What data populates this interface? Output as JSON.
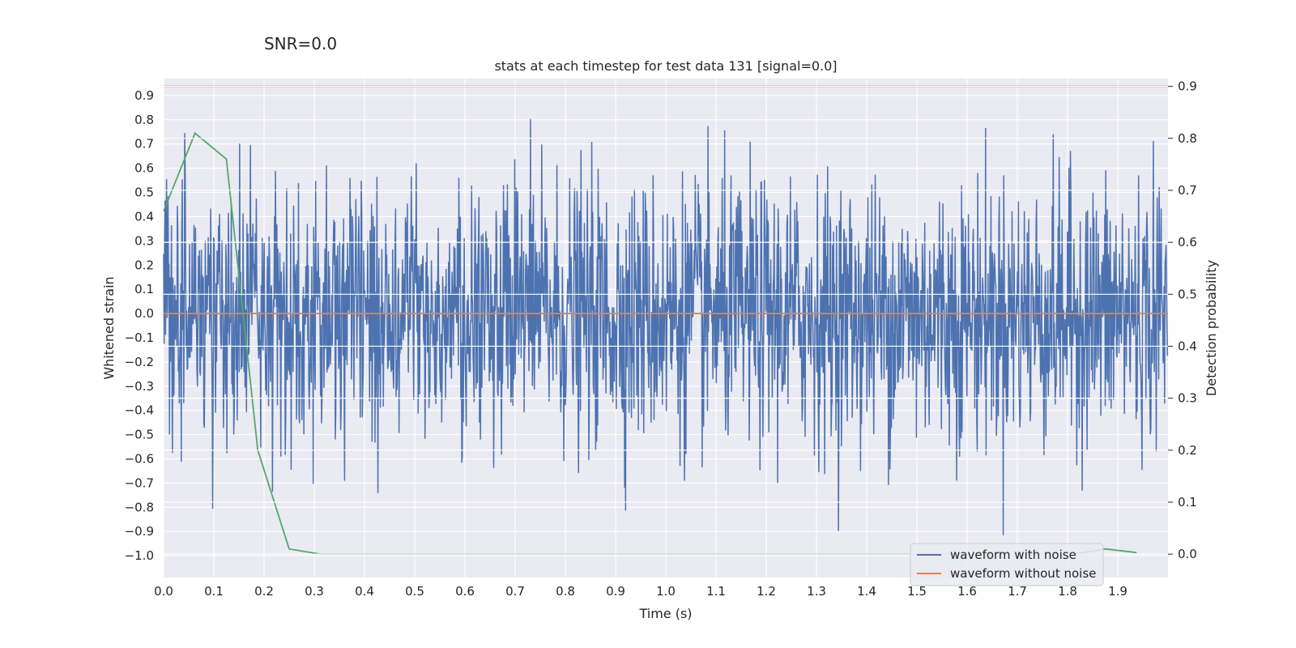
{
  "figure": {
    "suptitle": "SNR=0.0"
  },
  "chart_data": {
    "type": "line",
    "title": "stats at each timestep for test data 131 [signal=0.0]",
    "xlabel": "Time (s)",
    "ylabel": "Whitened strain",
    "y2label": "Detection probability",
    "xlim": [
      0.0,
      2.0
    ],
    "ylim": [
      -1.09,
      0.97
    ],
    "y2lim": [
      -0.045,
      0.915
    ],
    "grid": true,
    "legend_location": "lower-right",
    "x_ticks": [
      "0.0",
      "0.1",
      "0.2",
      "0.3",
      "0.4",
      "0.5",
      "0.6",
      "0.7",
      "0.8",
      "0.9",
      "1.0",
      "1.1",
      "1.2",
      "1.3",
      "1.4",
      "1.5",
      "1.6",
      "1.7",
      "1.8",
      "1.9"
    ],
    "y_ticks": [
      "0.9",
      "0.8",
      "0.7",
      "0.6",
      "0.5",
      "0.4",
      "0.3",
      "0.2",
      "0.1",
      "0.0",
      "−0.1",
      "−0.2",
      "−0.3",
      "−0.4",
      "−0.5",
      "−0.6",
      "−0.7",
      "−0.8",
      "−0.9",
      "−1.0"
    ],
    "y2_ticks": [
      "0.9",
      "0.8",
      "0.7",
      "0.6",
      "0.5",
      "0.4",
      "0.3",
      "0.2",
      "0.1",
      "0.0"
    ],
    "series": [
      {
        "name": "waveform with noise",
        "axis": "left",
        "color": "#4c72b0",
        "kind": "noise",
        "n_samples": 2048,
        "approx_std": 0.27,
        "approx_min": -1.0,
        "approx_max": 0.88
      },
      {
        "name": "waveform without noise",
        "axis": "left",
        "color": "#dd8452",
        "x": [
          0.0,
          2.0
        ],
        "y": [
          0.0,
          0.0
        ]
      },
      {
        "axis": "right",
        "color": "#55a868",
        "x": [
          0.0,
          0.0625,
          0.125,
          0.1875,
          0.25,
          0.3125,
          0.375,
          0.4375,
          0.5,
          0.5625,
          0.625,
          0.6875,
          0.75,
          0.8125,
          0.875,
          0.9375,
          1.0,
          1.0625,
          1.125,
          1.1875,
          1.25,
          1.3125,
          1.375,
          1.4375,
          1.5,
          1.5625,
          1.625,
          1.6875,
          1.75,
          1.8125,
          1.875,
          1.9375
        ],
        "y": [
          0.66,
          0.81,
          0.76,
          0.2,
          0.01,
          0.0,
          0.0,
          0.0,
          0.0,
          0.0,
          0.0,
          0.0,
          0.0,
          0.0,
          0.0,
          0.0,
          0.0,
          0.0,
          0.0,
          0.0,
          0.0,
          0.0,
          0.0,
          0.0,
          0.0,
          0.0,
          0.0,
          0.0,
          0.0,
          0.0,
          0.01,
          0.003
        ]
      },
      {
        "axis": "right",
        "color": "#c44e52",
        "kind": "threshold",
        "x": [
          0.0,
          2.0
        ],
        "y": [
          0.9,
          0.9
        ]
      }
    ]
  }
}
